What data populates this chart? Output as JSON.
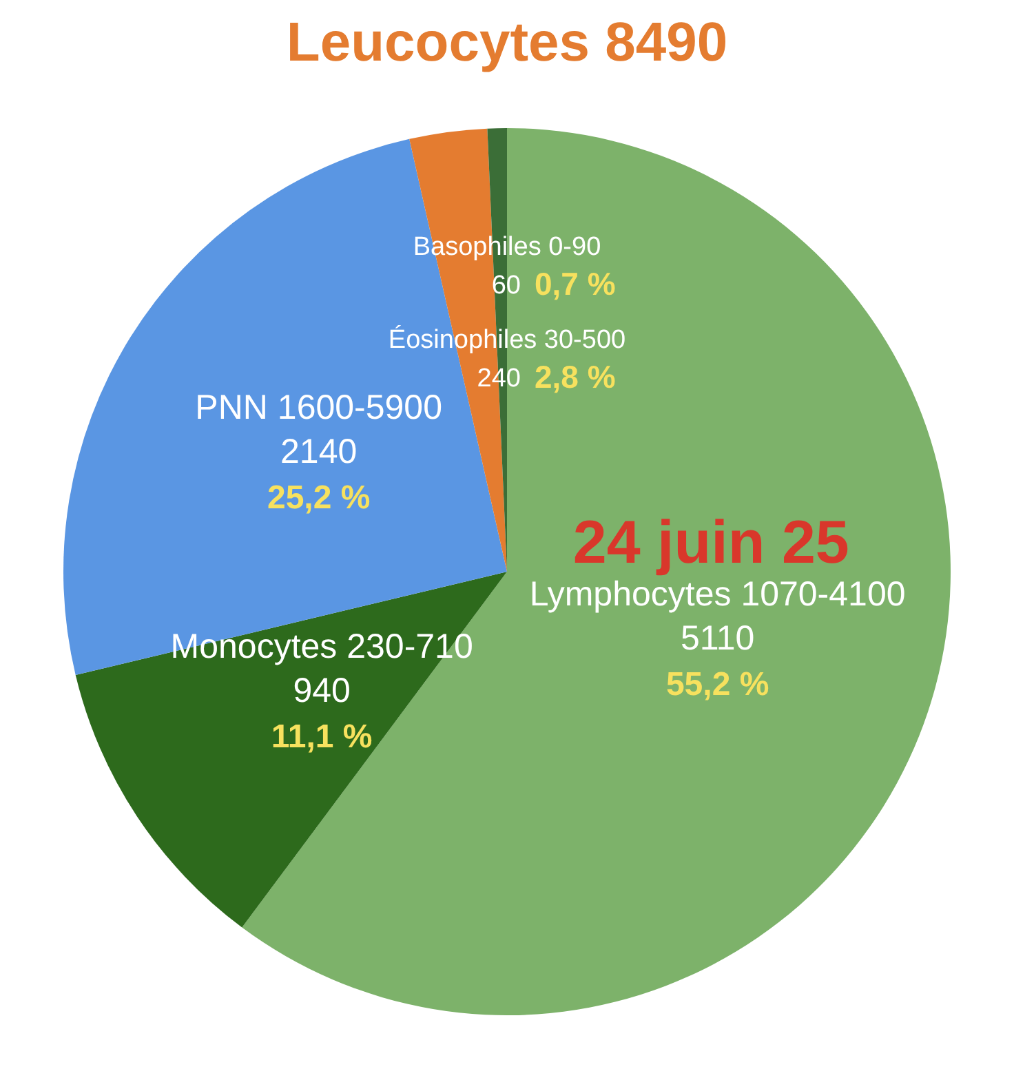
{
  "chart_data": {
    "type": "pie",
    "title": "Leucocytes 8490",
    "categories": [
      "Lymphocytes 1070-4100",
      "Monocytes 230-710",
      "PNN 1600-5900",
      "Éosinophiles 30-500",
      "Basophiles 0-90"
    ],
    "values": [
      5110,
      940,
      2140,
      240,
      60
    ],
    "colors": [
      "#7db26a",
      "#2d6a1c",
      "#5a96e3",
      "#e47c30",
      "#3b6e37"
    ],
    "data_labels": true,
    "annotations": [
      "24 juin 25",
      {
        "text": "55,2 %",
        "x": "Lymphocytes 1070-4100"
      },
      {
        "text": "11,1 %",
        "x": "Monocytes 230-710"
      },
      {
        "text": "25,2 %",
        "x": "PNN 1600-5900"
      },
      {
        "text": "2,8 %",
        "x": "Éosinophiles 30-500"
      },
      {
        "text": "0,7 %",
        "x": "Basophiles 0-90"
      }
    ]
  }
}
